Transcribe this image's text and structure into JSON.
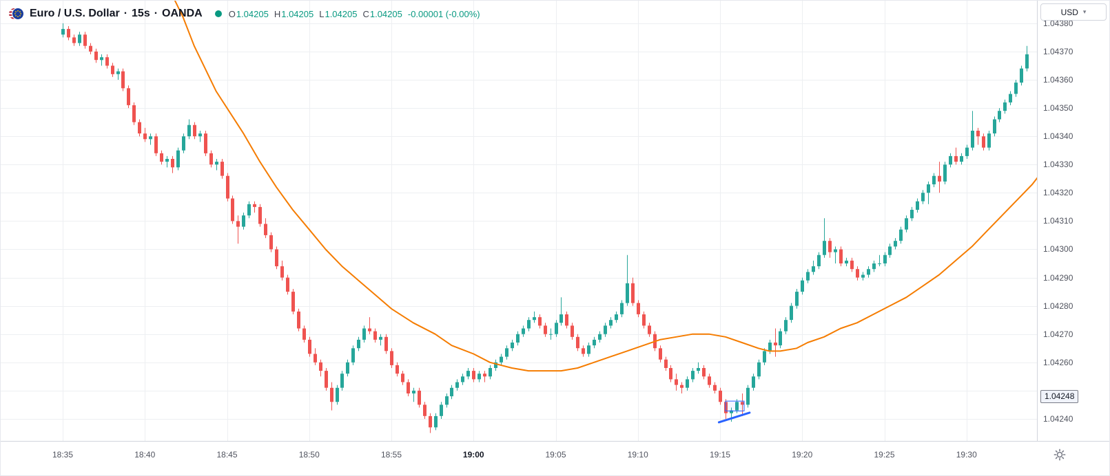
{
  "header": {
    "title": "Euro / U.S. Dollar",
    "dot_sep": "·",
    "interval": "15s",
    "exchange": "OANDA",
    "ohlc": {
      "o_label": "O",
      "o": "1.04205",
      "h_label": "H",
      "h": "1.04205",
      "l_label": "L",
      "l": "1.04205",
      "c_label": "C",
      "c": "1.04205",
      "change": "-0.00001 (-0.00%)"
    }
  },
  "price_axis": {
    "currency": "USD",
    "ticks": [
      {
        "label": "1.04380",
        "pip": 380
      },
      {
        "label": "1.04370",
        "pip": 370
      },
      {
        "label": "1.04360",
        "pip": 360
      },
      {
        "label": "1.04350",
        "pip": 350
      },
      {
        "label": "1.04340",
        "pip": 340
      },
      {
        "label": "1.04330",
        "pip": 330
      },
      {
        "label": "1.04320",
        "pip": 320
      },
      {
        "label": "1.04310",
        "pip": 310
      },
      {
        "label": "1.04300",
        "pip": 300
      },
      {
        "label": "1.04290",
        "pip": 290
      },
      {
        "label": "1.04280",
        "pip": 280
      },
      {
        "label": "1.04270",
        "pip": 270
      },
      {
        "label": "1.04260",
        "pip": 260
      },
      {
        "label": "1.04240",
        "pip": 240
      }
    ],
    "drawing_label": {
      "label": "1.04248",
      "pip": 248
    }
  },
  "time_axis": {
    "labels": [
      {
        "text": "18:35",
        "idx": 0,
        "bold": false
      },
      {
        "text": "18:40",
        "idx": 15,
        "bold": false
      },
      {
        "text": "18:45",
        "idx": 30,
        "bold": false
      },
      {
        "text": "18:50",
        "idx": 45,
        "bold": false
      },
      {
        "text": "18:55",
        "idx": 60,
        "bold": false
      },
      {
        "text": "19:00",
        "idx": 75,
        "bold": true
      },
      {
        "text": "19:05",
        "idx": 90,
        "bold": false
      },
      {
        "text": "19:10",
        "idx": 105,
        "bold": false
      },
      {
        "text": "19:15",
        "idx": 120,
        "bold": false
      },
      {
        "text": "19:20",
        "idx": 135,
        "bold": false
      },
      {
        "text": "19:25",
        "idx": 150,
        "bold": false
      },
      {
        "text": "19:30",
        "idx": 165,
        "bold": false
      }
    ]
  },
  "colors": {
    "up": "#26a69a",
    "down": "#ef5350",
    "accent_teal": "#089981",
    "ma_orange": "#f57c00",
    "drawing_blue": "#2962ff",
    "grid": "#edeff2"
  },
  "chart_data": {
    "type": "candlestick",
    "symbol": "EURUSD",
    "title": "Euro / U.S. Dollar, 15s, OANDA",
    "interval_label": "15s",
    "price_encoding": "price = 1.04 + pip/100000 (all candle/ma values are pips)",
    "visible_time_range": [
      "18:35",
      "19:34"
    ],
    "visible_price_range": [
      "1.04232",
      "1.04388"
    ],
    "start_time": "18:35",
    "approx_seconds_per_candle": 20,
    "y_axis": {
      "top_pip": 388,
      "bottom_pip": 232.2
    },
    "grid": {
      "h_pips": [
        380,
        370,
        360,
        350,
        340,
        330,
        320,
        310,
        300,
        290,
        280,
        270,
        260,
        250,
        240
      ]
    },
    "candles": [
      [
        376,
        380,
        375,
        378
      ],
      [
        378,
        379,
        374,
        375
      ],
      [
        375,
        376,
        372,
        373
      ],
      [
        373,
        377,
        372,
        376
      ],
      [
        376,
        377,
        371,
        372
      ],
      [
        372,
        373,
        369,
        370
      ],
      [
        370,
        371,
        366,
        367
      ],
      [
        367,
        369,
        365,
        368
      ],
      [
        368,
        369,
        364,
        365
      ],
      [
        365,
        366,
        361,
        362
      ],
      [
        362,
        364,
        360,
        363
      ],
      [
        363,
        364,
        356,
        357
      ],
      [
        357,
        358,
        350,
        351
      ],
      [
        351,
        352,
        344,
        345
      ],
      [
        345,
        346,
        340,
        341
      ],
      [
        341,
        343,
        338,
        339
      ],
      [
        339,
        341,
        337,
        340
      ],
      [
        340,
        341,
        333,
        334
      ],
      [
        334,
        335,
        330,
        331
      ],
      [
        331,
        333,
        329,
        332
      ],
      [
        332,
        333,
        327,
        329
      ],
      [
        329,
        336,
        328,
        335
      ],
      [
        335,
        341,
        334,
        340
      ],
      [
        340,
        346,
        339,
        344
      ],
      [
        344,
        345,
        339,
        340
      ],
      [
        340,
        342,
        338,
        341
      ],
      [
        341,
        342,
        333,
        334
      ],
      [
        334,
        335,
        329,
        330
      ],
      [
        330,
        332,
        328,
        331
      ],
      [
        331,
        332,
        325,
        326
      ],
      [
        326,
        327,
        317,
        318
      ],
      [
        318,
        319,
        309,
        310
      ],
      [
        310,
        312,
        302,
        308
      ],
      [
        308,
        313,
        307,
        312
      ],
      [
        312,
        317,
        311,
        316
      ],
      [
        316,
        317,
        313,
        315
      ],
      [
        315,
        316,
        308,
        309
      ],
      [
        309,
        311,
        304,
        305
      ],
      [
        305,
        306,
        299,
        300
      ],
      [
        300,
        301,
        293,
        294
      ],
      [
        294,
        296,
        289,
        290
      ],
      [
        290,
        291,
        284,
        285
      ],
      [
        285,
        286,
        277,
        278
      ],
      [
        278,
        279,
        271,
        272
      ],
      [
        272,
        273,
        267,
        268
      ],
      [
        268,
        269,
        262,
        263
      ],
      [
        263,
        265,
        259,
        260
      ],
      [
        260,
        261,
        255,
        257
      ],
      [
        257,
        258,
        250,
        251
      ],
      [
        251,
        253,
        243,
        246
      ],
      [
        246,
        252,
        245,
        251
      ],
      [
        251,
        257,
        250,
        256
      ],
      [
        256,
        261,
        255,
        260
      ],
      [
        260,
        266,
        259,
        265
      ],
      [
        265,
        269,
        264,
        268
      ],
      [
        268,
        273,
        267,
        272
      ],
      [
        272,
        276,
        270,
        271
      ],
      [
        271,
        272,
        267,
        268
      ],
      [
        268,
        270,
        266,
        269
      ],
      [
        269,
        270,
        263,
        264
      ],
      [
        264,
        265,
        258,
        259
      ],
      [
        259,
        260,
        255,
        256
      ],
      [
        256,
        257,
        252,
        253
      ],
      [
        253,
        254,
        248,
        249
      ],
      [
        249,
        251,
        246,
        250
      ],
      [
        250,
        251,
        244,
        245
      ],
      [
        245,
        246,
        240,
        241
      ],
      [
        241,
        242,
        235,
        237
      ],
      [
        237,
        242,
        236,
        241
      ],
      [
        241,
        246,
        240,
        245
      ],
      [
        245,
        249,
        244,
        248
      ],
      [
        248,
        252,
        247,
        251
      ],
      [
        251,
        254,
        250,
        253
      ],
      [
        253,
        256,
        252,
        255
      ],
      [
        255,
        258,
        254,
        257
      ],
      [
        257,
        258,
        253,
        254
      ],
      [
        254,
        257,
        253,
        256
      ],
      [
        256,
        257,
        253,
        255
      ],
      [
        255,
        259,
        254,
        258
      ],
      [
        258,
        261,
        257,
        260
      ],
      [
        260,
        263,
        259,
        262
      ],
      [
        262,
        266,
        261,
        265
      ],
      [
        265,
        268,
        264,
        267
      ],
      [
        267,
        271,
        266,
        270
      ],
      [
        270,
        273,
        269,
        272
      ],
      [
        272,
        276,
        271,
        275
      ],
      [
        275,
        278,
        274,
        276
      ],
      [
        276,
        277,
        272,
        273
      ],
      [
        273,
        274,
        269,
        270
      ],
      [
        270,
        272,
        268,
        270
      ],
      [
        270,
        275,
        269,
        274
      ],
      [
        274,
        283,
        273,
        277
      ],
      [
        277,
        278,
        272,
        273
      ],
      [
        273,
        274,
        268,
        269
      ],
      [
        269,
        270,
        264,
        265
      ],
      [
        265,
        266,
        262,
        263
      ],
      [
        263,
        267,
        262,
        266
      ],
      [
        266,
        269,
        265,
        268
      ],
      [
        268,
        271,
        267,
        270
      ],
      [
        270,
        274,
        269,
        273
      ],
      [
        273,
        276,
        272,
        275
      ],
      [
        275,
        278,
        274,
        277
      ],
      [
        277,
        282,
        276,
        281
      ],
      [
        281,
        298,
        280,
        288
      ],
      [
        288,
        290,
        280,
        281
      ],
      [
        281,
        282,
        276,
        277
      ],
      [
        277,
        278,
        272,
        273
      ],
      [
        273,
        274,
        269,
        270
      ],
      [
        270,
        271,
        264,
        265
      ],
      [
        265,
        266,
        260,
        261
      ],
      [
        261,
        262,
        257,
        258
      ],
      [
        258,
        259,
        253,
        254
      ],
      [
        254,
        256,
        250,
        252
      ],
      [
        252,
        253,
        249,
        251
      ],
      [
        251,
        255,
        250,
        254
      ],
      [
        254,
        258,
        253,
        257
      ],
      [
        257,
        260,
        256,
        258
      ],
      [
        258,
        259,
        254,
        255
      ],
      [
        255,
        256,
        251,
        252
      ],
      [
        252,
        253,
        249,
        250
      ],
      [
        250,
        251,
        245,
        246
      ],
      [
        246,
        247,
        240,
        242
      ],
      [
        242,
        244,
        239,
        243
      ],
      [
        243,
        247,
        242,
        246
      ],
      [
        246,
        249,
        241,
        245
      ],
      [
        245,
        252,
        244,
        251
      ],
      [
        251,
        256,
        250,
        255
      ],
      [
        255,
        261,
        254,
        260
      ],
      [
        260,
        265,
        259,
        264
      ],
      [
        264,
        268,
        263,
        267
      ],
      [
        267,
        272,
        262,
        266
      ],
      [
        266,
        272,
        265,
        271
      ],
      [
        271,
        276,
        270,
        275
      ],
      [
        275,
        281,
        274,
        280
      ],
      [
        280,
        286,
        279,
        285
      ],
      [
        285,
        290,
        284,
        289
      ],
      [
        289,
        293,
        288,
        292
      ],
      [
        292,
        296,
        291,
        294
      ],
      [
        294,
        299,
        293,
        298
      ],
      [
        298,
        311,
        297,
        303
      ],
      [
        303,
        304,
        297,
        299
      ],
      [
        299,
        301,
        295,
        300
      ],
      [
        300,
        301,
        294,
        295
      ],
      [
        295,
        297,
        294,
        296
      ],
      [
        296,
        297,
        292,
        293
      ],
      [
        293,
        294,
        289,
        290
      ],
      [
        290,
        292,
        289,
        291
      ],
      [
        291,
        294,
        290,
        293
      ],
      [
        293,
        296,
        292,
        295
      ],
      [
        295,
        298,
        294,
        295
      ],
      [
        295,
        299,
        294,
        298
      ],
      [
        298,
        302,
        297,
        301
      ],
      [
        301,
        304,
        300,
        303
      ],
      [
        303,
        308,
        302,
        307
      ],
      [
        307,
        312,
        306,
        311
      ],
      [
        311,
        315,
        310,
        314
      ],
      [
        314,
        318,
        313,
        317
      ],
      [
        317,
        321,
        316,
        320
      ],
      [
        320,
        324,
        316,
        323
      ],
      [
        323,
        327,
        322,
        326
      ],
      [
        326,
        331,
        320,
        324
      ],
      [
        324,
        331,
        323,
        330
      ],
      [
        330,
        334,
        329,
        333
      ],
      [
        333,
        336,
        330,
        331
      ],
      [
        331,
        334,
        330,
        333
      ],
      [
        333,
        337,
        332,
        336
      ],
      [
        336,
        349,
        335,
        342
      ],
      [
        342,
        343,
        337,
        340
      ],
      [
        340,
        341,
        335,
        336
      ],
      [
        336,
        342,
        335,
        341
      ],
      [
        341,
        347,
        340,
        346
      ],
      [
        346,
        350,
        345,
        349
      ],
      [
        349,
        353,
        348,
        352
      ],
      [
        352,
        356,
        351,
        355
      ],
      [
        355,
        360,
        354,
        359
      ],
      [
        359,
        365,
        358,
        364
      ],
      [
        364,
        372,
        363,
        369
      ]
    ],
    "ma": {
      "name": "Moving Average",
      "color": "#f57c00",
      "points": [
        [
          19,
          394
        ],
        [
          22,
          382
        ],
        [
          24,
          372
        ],
        [
          26,
          364
        ],
        [
          28,
          356
        ],
        [
          31,
          347
        ],
        [
          33,
          341
        ],
        [
          36,
          331
        ],
        [
          39,
          322
        ],
        [
          42,
          314
        ],
        [
          45,
          307
        ],
        [
          48,
          300
        ],
        [
          51,
          294
        ],
        [
          54,
          289
        ],
        [
          57,
          284
        ],
        [
          60,
          279
        ],
        [
          64,
          274
        ],
        [
          68,
          270
        ],
        [
          71,
          266
        ],
        [
          75,
          263
        ],
        [
          78,
          260
        ],
        [
          82,
          258
        ],
        [
          85,
          257
        ],
        [
          88,
          257
        ],
        [
          91,
          257
        ],
        [
          94,
          258
        ],
        [
          97,
          260
        ],
        [
          100,
          262
        ],
        [
          103,
          264
        ],
        [
          106,
          266
        ],
        [
          109,
          268
        ],
        [
          112,
          269
        ],
        [
          115,
          270
        ],
        [
          118,
          270
        ],
        [
          121,
          269
        ],
        [
          124,
          267
        ],
        [
          127,
          265
        ],
        [
          129,
          264
        ],
        [
          131,
          264
        ],
        [
          134,
          265
        ],
        [
          136,
          267
        ],
        [
          139,
          269
        ],
        [
          142,
          272
        ],
        [
          145,
          274
        ],
        [
          148,
          277
        ],
        [
          151,
          280
        ],
        [
          154,
          283
        ],
        [
          157,
          287
        ],
        [
          160,
          291
        ],
        [
          163,
          296
        ],
        [
          166,
          301
        ],
        [
          169,
          307
        ],
        [
          172,
          313
        ],
        [
          175,
          319
        ],
        [
          177,
          323
        ],
        [
          179,
          328
        ]
      ]
    },
    "drawing": {
      "type": "trend-line",
      "color": "#2962ff",
      "line": [
        [
          119.8,
          238.8
        ],
        [
          125.4,
          242.2
        ]
      ],
      "box": {
        "i1": 121.0,
        "p1": 246.3,
        "i2": 124.4,
        "p2": 242.8
      },
      "price_label": "1.04248"
    }
  }
}
